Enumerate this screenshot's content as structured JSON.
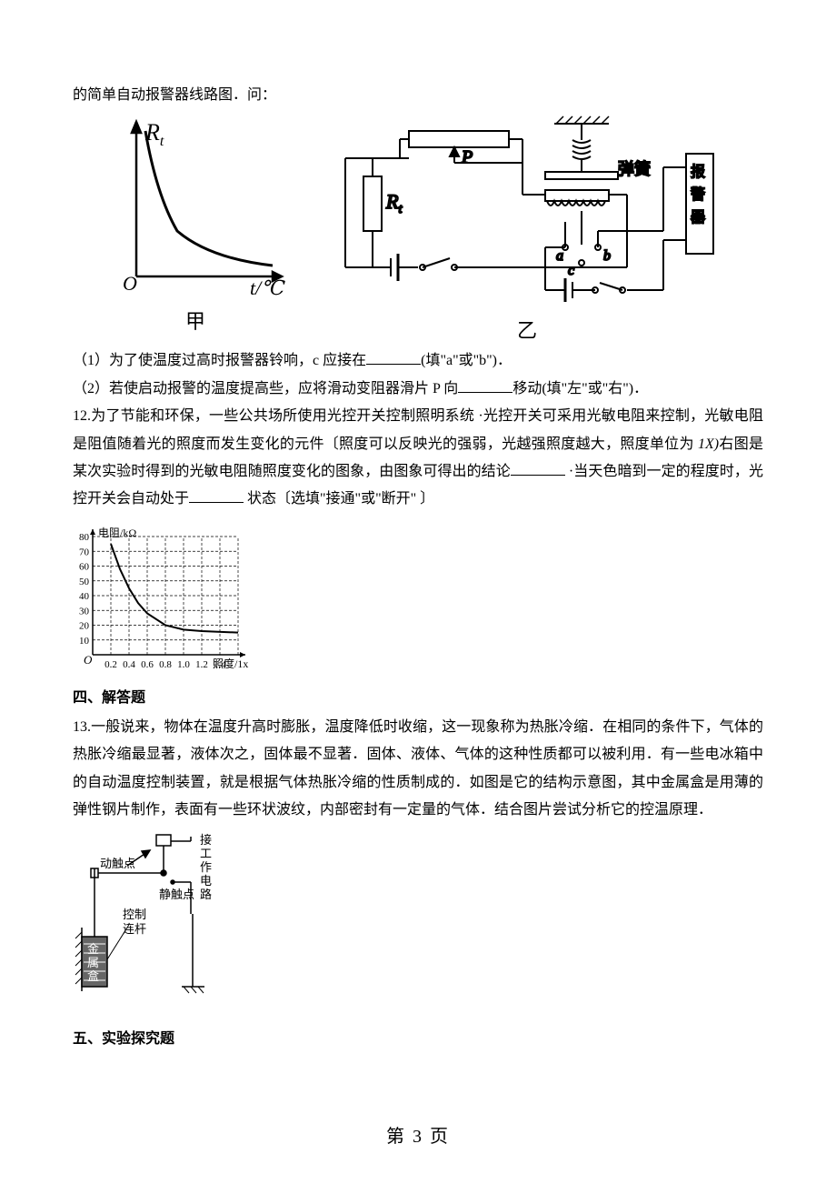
{
  "top_line": "的简单自动报警器线路图．问：",
  "fig1": {
    "caption_left": "甲",
    "caption_right": "乙",
    "graph": {
      "axis_x_label": "t/℃",
      "axis_y_label": "Rₜ",
      "origin": "O",
      "curve_points": [
        [
          10,
          5
        ],
        [
          15,
          30
        ],
        [
          20,
          50
        ],
        [
          30,
          65
        ],
        [
          45,
          78
        ],
        [
          70,
          85
        ],
        [
          100,
          89
        ],
        [
          135,
          91
        ]
      ],
      "axis_color": "#000000",
      "curve_color": "#000000",
      "line_width": 2.5
    },
    "circuit": {
      "labels": {
        "Rt": "Rₜ",
        "P": "P",
        "a": "a",
        "b": "b",
        "c": "c",
        "spring": "弹簧",
        "alarm": "报警器"
      },
      "stroke": "#000000",
      "line_width": 2
    }
  },
  "q11_1": "（1）为了使温度过高时报警器铃响，c 应接在",
  "q11_1_tail": "(填\"a\"或\"b\")．",
  "q11_2": "（2）若使启动报警的温度提高些，应将滑动变阻器滑片 P 向",
  "q11_2_tail": "移动(填\"左\"或\"右\")．",
  "q12_p1": "12.为了节能和环保，一些公共场所使用光控开关控制照明系统 ·光控开关可采用光敏电阻来控制，光敏电阻是阻值随着光的照度而发生变化的元件〔照度可以反映光的强弱，光越强照度越大，照度单位为 ",
  "q12_unit": "1X)",
  "q12_p1b": "右图是某次实验时得到的光敏电阻随照度变化的图象，由图象可得出的结论",
  "q12_p2a": " ·当天色暗到一定的程度时，光控开关会自动处于",
  "q12_p2b": " 状态〔选填\"接通\"或\"断开\" 〕",
  "chart12": {
    "type": "line",
    "x_label": "照度/1x",
    "y_label": "电阻/kΩ",
    "x_ticks": [
      "0.2",
      "0.4",
      "0.6",
      "0.8",
      "1.0",
      "1.2",
      "1.4"
    ],
    "y_ticks": [
      "10",
      "20",
      "30",
      "40",
      "50",
      "60",
      "70",
      "80"
    ],
    "origin": "O",
    "xlim": [
      0,
      1.6
    ],
    "ylim": [
      0,
      80
    ],
    "points": [
      [
        0.2,
        75
      ],
      [
        0.3,
        58
      ],
      [
        0.4,
        45
      ],
      [
        0.5,
        35
      ],
      [
        0.6,
        28
      ],
      [
        0.8,
        20
      ],
      [
        1.0,
        17
      ],
      [
        1.2,
        16
      ],
      [
        1.6,
        15
      ]
    ],
    "grid_color": "#000000",
    "curve_color": "#000000",
    "background": "#ffffff",
    "tick_fontsize": 11,
    "label_fontsize": 12,
    "line_width": 2
  },
  "section4": "四、解答题",
  "q13": "13.一般说来，物体在温度升高时膨胀，温度降低时收缩，这一现象称为热胀冷缩．在相同的条件下，气体的热胀冷缩最显著，液体次之，固体最不显著．固体、液体、气体的这种性质都可以被利用．有一些电冰箱中的自动温度控制装置，就是根据气体热胀冷缩的性质制成的．如图是它的结构示意图，其中金属盒是用薄的弹性钢片制作，表面有一些环状波纹，内部密封有一定量的气体．结合图片尝试分析它的控温原理．",
  "fig13": {
    "labels": {
      "moving_contact": "动触点",
      "static_contact": "静触点",
      "work_circuit_1": "接",
      "work_circuit_2": "工",
      "work_circuit_3": "作",
      "work_circuit_4": "电",
      "work_circuit_5": "路",
      "control": "控制",
      "rod": "连杆",
      "metal_box_1": "金",
      "metal_box_2": "属",
      "metal_box_3": "盒"
    },
    "stroke": "#000000",
    "line_width": 1.5
  },
  "section5": "五、实验探究题",
  "page_number": "第 3 页"
}
